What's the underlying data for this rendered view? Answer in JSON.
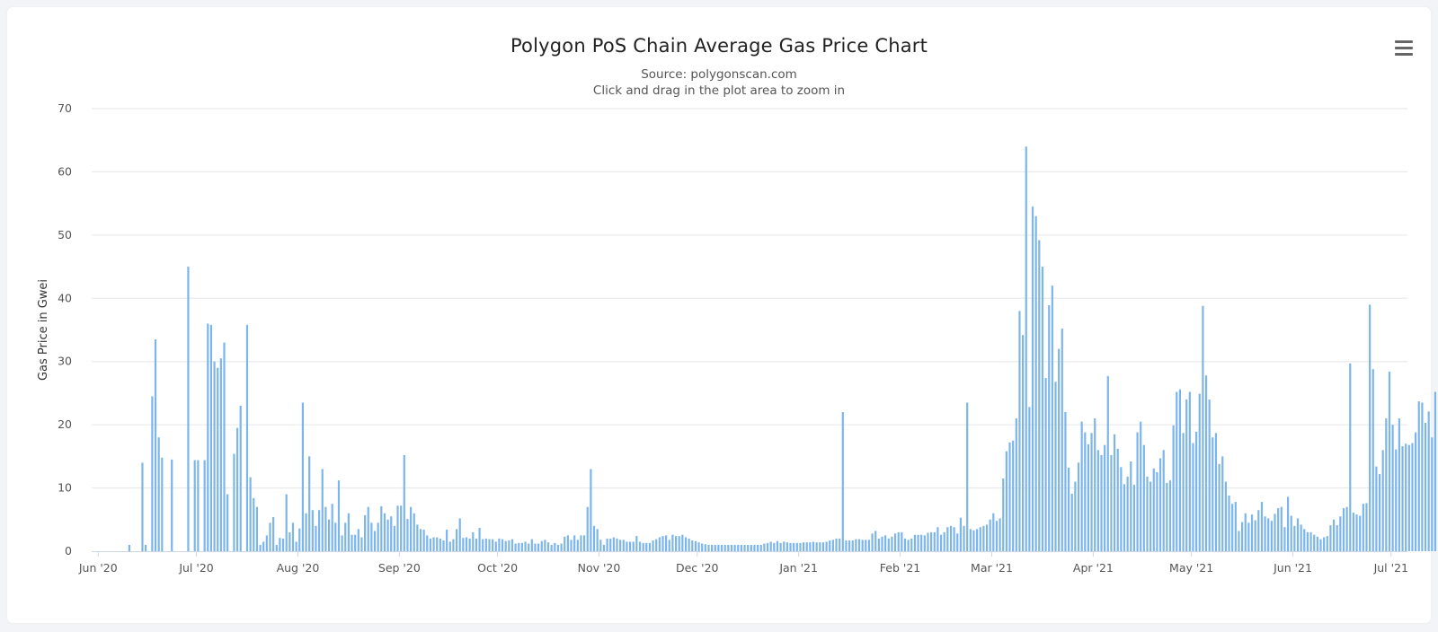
{
  "header": {
    "title": "Polygon PoS Chain Average Gas Price Chart",
    "subtitle": "Source: polygonscan.com",
    "hint": "Click and drag in the plot area to zoom in"
  },
  "menu": {
    "icon": "hamburger-menu-icon"
  },
  "colors": {
    "bar": "#7cb5ec",
    "grid": "#e6e6e6",
    "axis": "#ccd6eb"
  },
  "chart_data": {
    "type": "bar",
    "title": "Polygon PoS Chain Average Gas Price Chart",
    "subtitle": "Source: polygonscan.com",
    "xlabel": "",
    "ylabel": "Gas Price in Gwei",
    "x_range": [
      "2020-05-30",
      "2021-07-06"
    ],
    "ylim": [
      0,
      70
    ],
    "yticks": [
      0,
      10,
      20,
      30,
      40,
      50,
      60,
      70
    ],
    "xticks": [
      {
        "date": "2020-06-01",
        "label": "Jun '20"
      },
      {
        "date": "2020-07-01",
        "label": "Jul '20"
      },
      {
        "date": "2020-08-01",
        "label": "Aug '20"
      },
      {
        "date": "2020-09-01",
        "label": "Sep '20"
      },
      {
        "date": "2020-10-01",
        "label": "Oct '20"
      },
      {
        "date": "2020-11-01",
        "label": "Nov '20"
      },
      {
        "date": "2020-12-01",
        "label": "Dec '20"
      },
      {
        "date": "2021-01-01",
        "label": "Jan '21"
      },
      {
        "date": "2021-02-01",
        "label": "Feb '21"
      },
      {
        "date": "2021-03-01",
        "label": "Mar '21"
      },
      {
        "date": "2021-04-01",
        "label": "Apr '21"
      },
      {
        "date": "2021-05-01",
        "label": "May '21"
      },
      {
        "date": "2021-06-01",
        "label": "Jun '21"
      },
      {
        "date": "2021-07-01",
        "label": "Jul '21"
      }
    ],
    "grid": true,
    "legend": "none",
    "series": [
      {
        "x_start": "2020-05-30",
        "interval": "1 day",
        "values": [
          0,
          0,
          0,
          0,
          0,
          0,
          0,
          0,
          0,
          0,
          0,
          1,
          0,
          0,
          0,
          14,
          1,
          0,
          24.5,
          33.5,
          18,
          14.8,
          0,
          0,
          14.5,
          0,
          0,
          0,
          0,
          45,
          0,
          14.4,
          14.4,
          0,
          14.4,
          36,
          35.8,
          30,
          29,
          30.5,
          33,
          9,
          0,
          15.4,
          19.5,
          23,
          0,
          35.8,
          11.7,
          8.4,
          7,
          1,
          1.5,
          2.5,
          4.5,
          5.4,
          1,
          2.1,
          2,
          9,
          3,
          4.5,
          1.5,
          3.6,
          23.5,
          6,
          15,
          6.5,
          4,
          6.5,
          13,
          7,
          5,
          7.5,
          4.5,
          11.2,
          2.5,
          4.5,
          6,
          2.6,
          2.6,
          3.5,
          2.2,
          5.7,
          7,
          4.5,
          3.2,
          4.5,
          7.1,
          6,
          5,
          5.5,
          4,
          7.2,
          7.2,
          15.2,
          5.1,
          7,
          6,
          4.2,
          3.5,
          3.4,
          2.5,
          2,
          2.2,
          2.2,
          2,
          1.7,
          3.4,
          1.5,
          1.9,
          3.5,
          5.2,
          2.1,
          2.2,
          2,
          3,
          2,
          3.7,
          1.9,
          2,
          1.9,
          1.9,
          1.5,
          2,
          1.9,
          1.6,
          1.7,
          1.9,
          1.2,
          1.3,
          1.3,
          1.5,
          1.2,
          1.9,
          1.2,
          1.2,
          1.6,
          1.8,
          1.4,
          1,
          1.3,
          1,
          1.2,
          2.3,
          2.5,
          1.8,
          2.5,
          1.8,
          2.5,
          2.5,
          7,
          13,
          4,
          3.5,
          1.8,
          1,
          2,
          2,
          2.2,
          2,
          1.8,
          1.8,
          1.5,
          1.5,
          1.5,
          2.4,
          1.5,
          1.3,
          1.3,
          1.3,
          1.7,
          1.9,
          2.2,
          2.4,
          2.5,
          1.8,
          2.6,
          2.4,
          2.4,
          2.6,
          2.2,
          2,
          1.7,
          1.6,
          1.4,
          1.2,
          1.1,
          1,
          1,
          1,
          1,
          1,
          1,
          1,
          1,
          1,
          1,
          1,
          1,
          1,
          1,
          1,
          1,
          1,
          1.2,
          1.3,
          1.5,
          1.3,
          1.6,
          1.3,
          1.5,
          1.4,
          1.3,
          1.3,
          1.3,
          1.3,
          1.4,
          1.4,
          1.4,
          1.5,
          1.4,
          1.4,
          1.4,
          1.5,
          1.7,
          1.8,
          2,
          2,
          22,
          1.7,
          1.7,
          1.7,
          1.9,
          1.9,
          1.8,
          1.8,
          1.8,
          2.8,
          3.2,
          2,
          2.3,
          2.5,
          2,
          2.3,
          2.8,
          3,
          3,
          2,
          1.8,
          2,
          2.6,
          2.6,
          2.6,
          2.5,
          2.9,
          3,
          3,
          3.8,
          2.6,
          3,
          3.8,
          4,
          3.8,
          2.8,
          5.3,
          4,
          23.5,
          3.5,
          3.3,
          3.5,
          3.8,
          4,
          4.2,
          5,
          6,
          4.8,
          5.2,
          11.5,
          15.8,
          17.2,
          17.5,
          21,
          38,
          34.2,
          64,
          22.8,
          54.5,
          53,
          49.2,
          45,
          27.4,
          38.9,
          42,
          26.8,
          32,
          35.2,
          22,
          13.2,
          9.1,
          11,
          14,
          20.5,
          18.8,
          16.9,
          18.7,
          21,
          16,
          15.2,
          16.8,
          27.7,
          15.2,
          18.5,
          16.2,
          13.3,
          10.6,
          11.8,
          14.2,
          10.5,
          18.8,
          20.5,
          16.8,
          11.8,
          11,
          13.1,
          12.5,
          14.7,
          16,
          10.8,
          11.2,
          19.9,
          25.2,
          25.6,
          18.7,
          24,
          25.2,
          17.1,
          18.9,
          24.9,
          38.8,
          27.8,
          24,
          18,
          18.7,
          13.8,
          15,
          11,
          8.8,
          7.5,
          7.8,
          3.2,
          4.6,
          6,
          4.5,
          5.8,
          4.9,
          6.5,
          7.8,
          5.5,
          5.2,
          4.8,
          5.9,
          6.8,
          7,
          3.8,
          8.6,
          5.6,
          4,
          5.2,
          4.2,
          3.5,
          3,
          3,
          2.6,
          2.3,
          1.9,
          2.2,
          2.4,
          4.1,
          5,
          4.1,
          5.5,
          6.8,
          7,
          29.7,
          6.1,
          5.8,
          5.6,
          7.5,
          7.6,
          39,
          28.8,
          13.4,
          12.2,
          16,
          21,
          28.4,
          20,
          16.1,
          21,
          16.6,
          17,
          16.8,
          17.1,
          18.8,
          23.7,
          23.5,
          20.3,
          22.1,
          18,
          25.2
        ]
      }
    ]
  }
}
